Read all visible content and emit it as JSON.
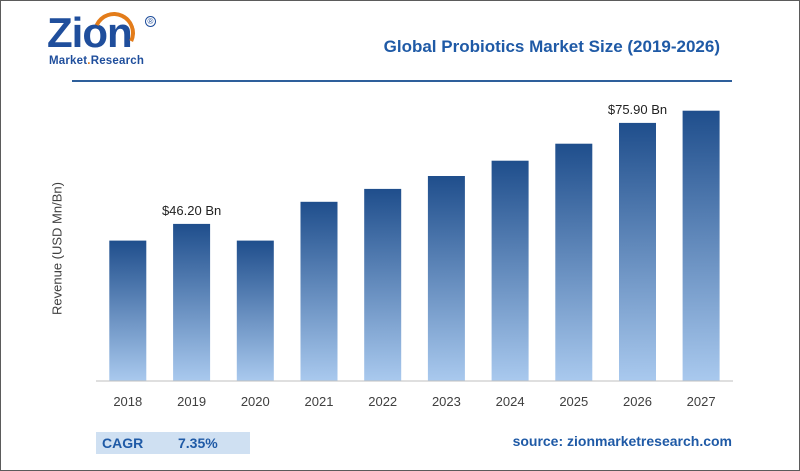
{
  "logo": {
    "brand": "Zion",
    "sub_prefix": "Market",
    "sub_dot": ".",
    "sub_suffix": "Research",
    "registered": "®"
  },
  "header": {
    "title": "Global Probiotics Market Size (2019-2026)"
  },
  "colors": {
    "bar_top": "#1f4e8c",
    "bar_bottom": "#a9c9ee",
    "title": "#1f5aa6",
    "accent": "#e37c1a"
  },
  "chart_data": {
    "type": "bar",
    "title": "Global Probiotics Market Size (2019-2026)",
    "xlabel": "",
    "ylabel": "Revenue (USD Mn/Bn)",
    "categories": [
      "2018",
      "2019",
      "2020",
      "2021",
      "2022",
      "2023",
      "2024",
      "2025",
      "2026",
      "2027"
    ],
    "values": [
      41.3,
      46.2,
      41.3,
      52.7,
      56.5,
      60.3,
      64.8,
      69.8,
      75.9,
      79.5
    ],
    "ylim": [
      0,
      85
    ],
    "grid": false,
    "annotations": [
      {
        "category": "2019",
        "text": "$46.20 Bn"
      },
      {
        "category": "2026",
        "text": "$75.90 Bn"
      }
    ]
  },
  "footer": {
    "cagr_label": "CAGR",
    "cagr_value": "7.35%",
    "source": "source: zionmarketresearch.com"
  }
}
